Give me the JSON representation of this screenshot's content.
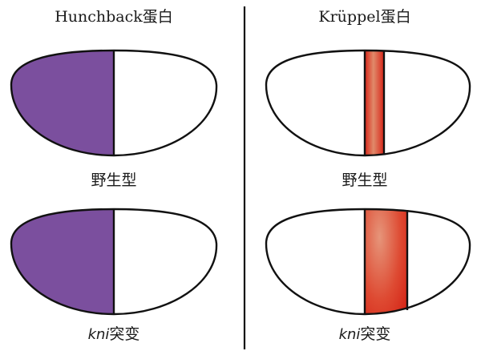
{
  "panels": {
    "left": {
      "title": "Hunchback蛋白"
    },
    "right": {
      "title": "Krüppel蛋白"
    }
  },
  "rows": {
    "wild_type": {
      "label": "野生型"
    },
    "mutant": {
      "gene": "kni",
      "suffix": "突变"
    }
  },
  "colors": {
    "hunchback": "#7b4f9e",
    "kruppel_core": "#e08a6a",
    "kruppel_edge": "#d8261a",
    "outline": "#111111",
    "divider": "#111111"
  },
  "icons": {
    "embryo": "embryo-ellipse-icon"
  }
}
